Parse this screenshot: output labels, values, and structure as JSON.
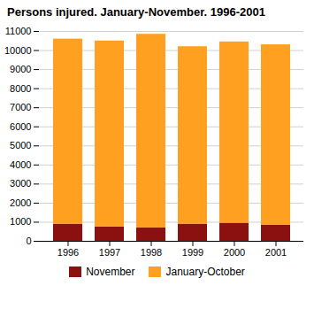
{
  "chart_data": {
    "type": "bar",
    "stacked": true,
    "title": "Persons injured. January-November. 1996-2001",
    "categories": [
      "1996",
      "1997",
      "1998",
      "1999",
      "2000",
      "2001"
    ],
    "series": [
      {
        "name": "November",
        "color": "#8B1010",
        "values": [
          900,
          750,
          700,
          900,
          950,
          850
        ]
      },
      {
        "name": "January-October",
        "color": "#FFA020",
        "values": [
          9700,
          9750,
          10150,
          9300,
          9500,
          9450
        ]
      }
    ],
    "ylim": [
      0,
      11000
    ],
    "yticks": [
      0,
      1000,
      2000,
      3000,
      4000,
      5000,
      6000,
      7000,
      8000,
      9000,
      10000,
      11000
    ],
    "grid": true,
    "legend": "bottom"
  }
}
